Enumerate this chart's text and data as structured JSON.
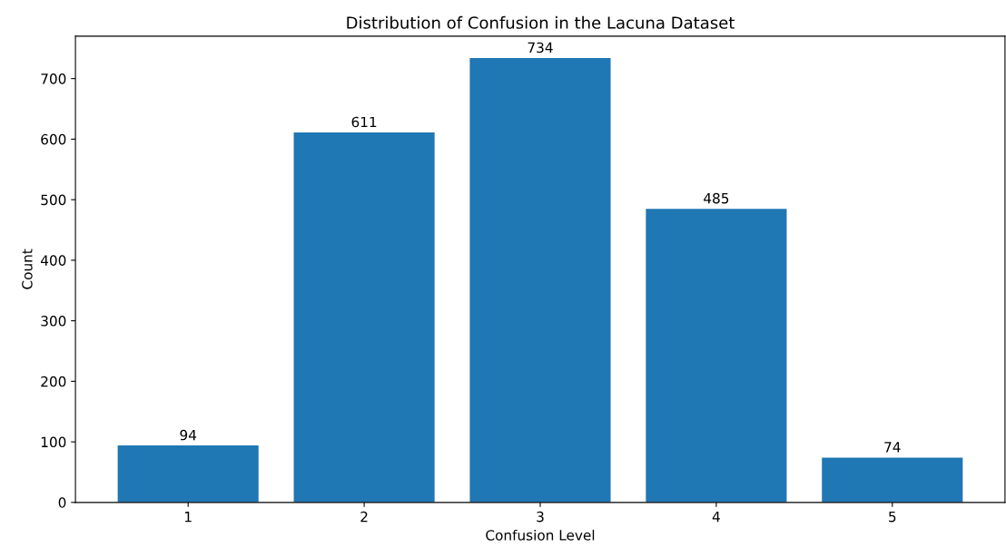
{
  "chart_data": {
    "type": "bar",
    "title": "Distribution of Confusion in the Lacuna Dataset",
    "xlabel": "Confusion Level",
    "ylabel": "Count",
    "categories": [
      "1",
      "2",
      "3",
      "4",
      "5"
    ],
    "values": [
      94,
      611,
      734,
      485,
      74
    ],
    "color": "#1f77b4",
    "data_labels": true,
    "ylim": [
      0,
      770
    ],
    "yticks": [
      0,
      100,
      200,
      300,
      400,
      500,
      600,
      700
    ],
    "grid": false
  }
}
